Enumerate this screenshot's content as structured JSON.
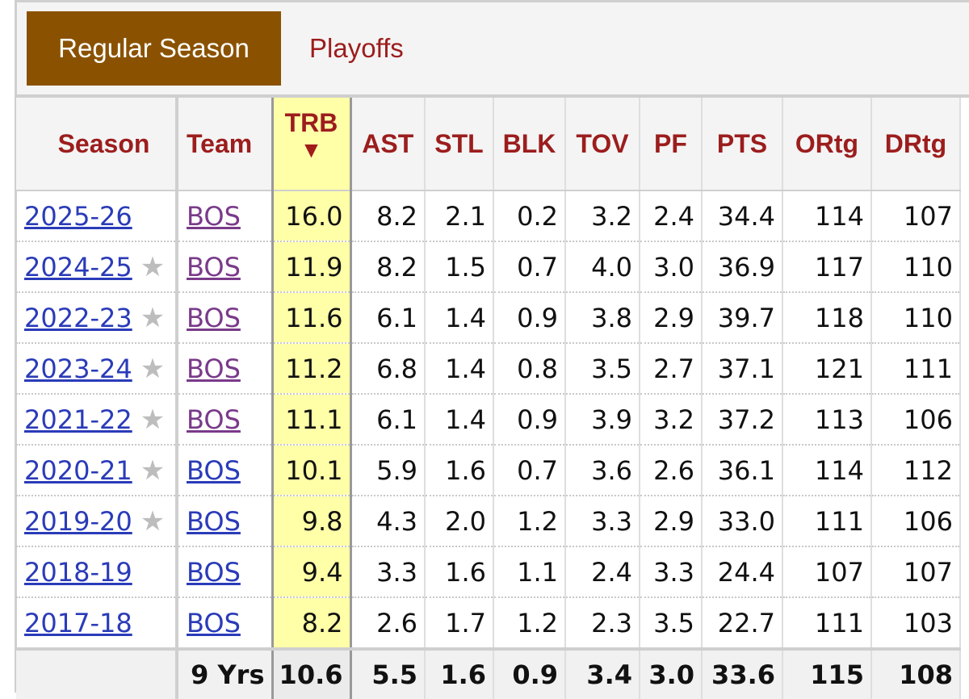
{
  "tabs": [
    {
      "label": "Regular Season",
      "active": true
    },
    {
      "label": "Playoffs",
      "active": false
    }
  ],
  "table": {
    "headers": [
      "Season",
      "Team",
      "TRB",
      "AST",
      "STL",
      "BLK",
      "TOV",
      "PF",
      "PTS",
      "ORtg",
      "DRtg"
    ],
    "sorted_column": "TRB",
    "sort_indicator": "▼",
    "rows": [
      {
        "season": "2025-26",
        "star": false,
        "team": "BOS",
        "team_visited": true,
        "trb": "16.0",
        "ast": "8.2",
        "stl": "2.1",
        "blk": "0.2",
        "tov": "3.2",
        "pf": "2.4",
        "pts": "34.4",
        "ortg": "114",
        "drtg": "107"
      },
      {
        "season": "2024-25",
        "star": true,
        "team": "BOS",
        "team_visited": true,
        "trb": "11.9",
        "ast": "8.2",
        "stl": "1.5",
        "blk": "0.7",
        "tov": "4.0",
        "pf": "3.0",
        "pts": "36.9",
        "ortg": "117",
        "drtg": "110"
      },
      {
        "season": "2022-23",
        "star": true,
        "team": "BOS",
        "team_visited": true,
        "trb": "11.6",
        "ast": "6.1",
        "stl": "1.4",
        "blk": "0.9",
        "tov": "3.8",
        "pf": "2.9",
        "pts": "39.7",
        "ortg": "118",
        "drtg": "110"
      },
      {
        "season": "2023-24",
        "star": true,
        "team": "BOS",
        "team_visited": true,
        "trb": "11.2",
        "ast": "6.8",
        "stl": "1.4",
        "blk": "0.8",
        "tov": "3.5",
        "pf": "2.7",
        "pts": "37.1",
        "ortg": "121",
        "drtg": "111"
      },
      {
        "season": "2021-22",
        "star": true,
        "team": "BOS",
        "team_visited": true,
        "trb": "11.1",
        "ast": "6.1",
        "stl": "1.4",
        "blk": "0.9",
        "tov": "3.9",
        "pf": "3.2",
        "pts": "37.2",
        "ortg": "113",
        "drtg": "106"
      },
      {
        "season": "2020-21",
        "star": true,
        "team": "BOS",
        "team_visited": false,
        "trb": "10.1",
        "ast": "5.9",
        "stl": "1.6",
        "blk": "0.7",
        "tov": "3.6",
        "pf": "2.6",
        "pts": "36.1",
        "ortg": "114",
        "drtg": "112"
      },
      {
        "season": "2019-20",
        "star": true,
        "team": "BOS",
        "team_visited": false,
        "trb": "9.8",
        "ast": "4.3",
        "stl": "2.0",
        "blk": "1.2",
        "tov": "3.3",
        "pf": "2.9",
        "pts": "33.0",
        "ortg": "111",
        "drtg": "106"
      },
      {
        "season": "2018-19",
        "star": false,
        "team": "BOS",
        "team_visited": false,
        "trb": "9.4",
        "ast": "3.3",
        "stl": "1.6",
        "blk": "1.1",
        "tov": "2.4",
        "pf": "3.3",
        "pts": "24.4",
        "ortg": "107",
        "drtg": "107"
      },
      {
        "season": "2017-18",
        "star": false,
        "team": "BOS",
        "team_visited": false,
        "trb": "8.2",
        "ast": "2.6",
        "stl": "1.7",
        "blk": "1.2",
        "tov": "2.3",
        "pf": "3.5",
        "pts": "22.7",
        "ortg": "111",
        "drtg": "103"
      }
    ],
    "footer": {
      "label": "9 Yrs",
      "trb": "10.6",
      "ast": "5.5",
      "stl": "1.6",
      "blk": "0.9",
      "tov": "3.4",
      "pf": "3.0",
      "pts": "33.6",
      "ortg": "115",
      "drtg": "108"
    }
  },
  "colors": {
    "tab_active_bg": "#8a5200",
    "header_text": "#9c1d1d",
    "sorted_column_bg": "#ffffa8",
    "link": "#2a3bb8",
    "visited_link": "#7a3a8a",
    "star": "#bdbdbd"
  },
  "icons": {
    "star": "star-icon",
    "sort": "sort-desc-icon"
  }
}
